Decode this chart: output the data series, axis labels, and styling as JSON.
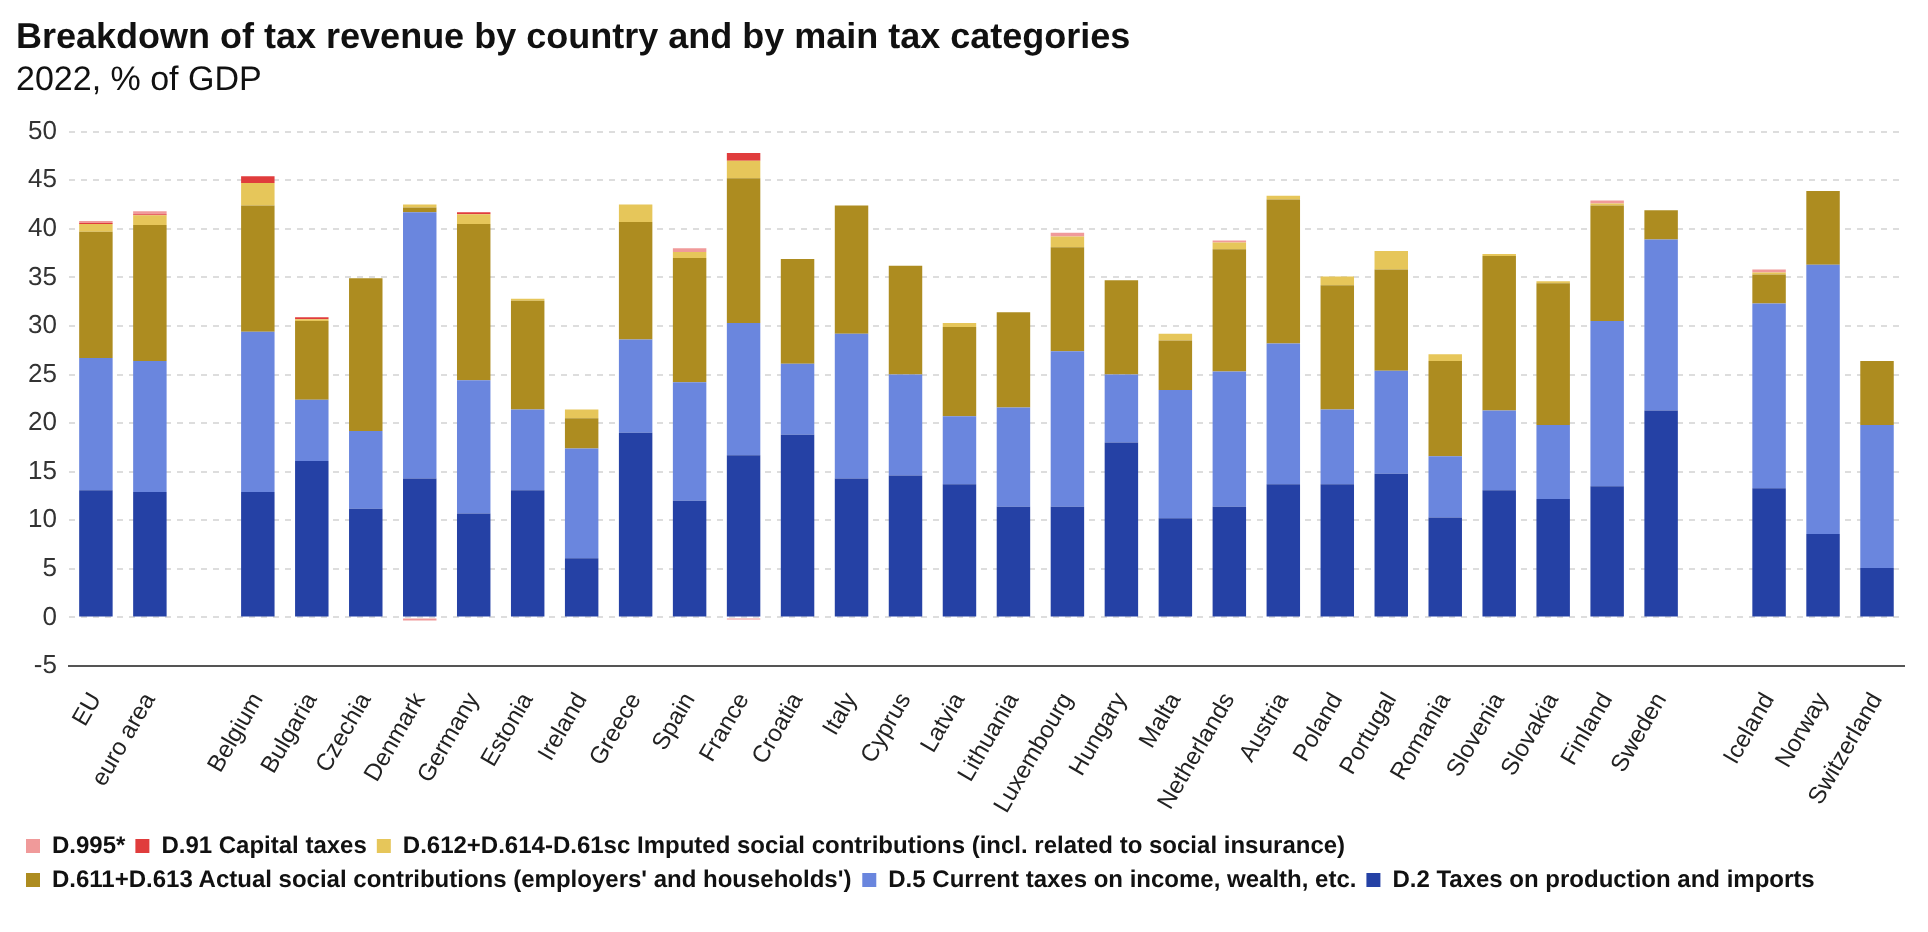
{
  "chart_data": {
    "type": "bar",
    "title": "Breakdown of tax revenue by country and by main tax categories",
    "subtitle": "2022, % of GDP",
    "categories": [
      "EU",
      "euro area",
      null,
      "Belgium",
      "Bulgaria",
      "Czechia",
      "Denmark",
      "Germany",
      "Estonia",
      "Ireland",
      "Greece",
      "Spain",
      "France",
      "Croatia",
      "Italy",
      "Cyprus",
      "Latvia",
      "Lithuania",
      "Luxembourg",
      "Hungary",
      "Malta",
      "Netherlands",
      "Austria",
      "Poland",
      "Portugal",
      "Romania",
      "Slovenia",
      "Slovakia",
      "Finland",
      "Sweden",
      null,
      "Iceland",
      "Norway",
      "Switzerland"
    ],
    "stacked": true,
    "series": [
      {
        "name": "D.2 Taxes on production and imports",
        "color": "#2541a5",
        "values": [
          13.1,
          12.9,
          null,
          12.9,
          16.1,
          11.2,
          14.3,
          10.7,
          13.1,
          6.1,
          19.0,
          12.0,
          16.7,
          18.8,
          14.3,
          14.6,
          13.7,
          11.4,
          11.4,
          18.0,
          10.2,
          11.4,
          13.7,
          13.7,
          14.8,
          10.3,
          13.1,
          12.2,
          13.5,
          21.3,
          null,
          13.3,
          8.6,
          5.1
        ]
      },
      {
        "name": "D.5 Current taxes on income, wealth, etc.",
        "color": "#6a86de",
        "values": [
          13.6,
          13.5,
          null,
          16.5,
          6.3,
          8.0,
          27.4,
          13.7,
          8.3,
          11.3,
          9.6,
          12.2,
          13.6,
          7.3,
          14.9,
          10.4,
          7.0,
          10.2,
          16.0,
          7.0,
          13.2,
          13.9,
          14.5,
          7.7,
          10.6,
          6.3,
          8.2,
          7.6,
          17.0,
          17.6,
          null,
          19.0,
          27.7,
          14.7
        ]
      },
      {
        "name": "D.611+D.613 Actual social contributions (employers' and households')",
        "color": "#ad8c20",
        "values": [
          13.0,
          14.0,
          null,
          13.0,
          8.1,
          15.7,
          0.5,
          16.1,
          11.2,
          3.1,
          12.1,
          12.8,
          14.9,
          10.8,
          13.2,
          11.2,
          9.2,
          9.8,
          10.7,
          9.7,
          5.1,
          12.6,
          14.8,
          12.8,
          10.4,
          9.8,
          15.9,
          14.6,
          11.9,
          3.0,
          null,
          3.0,
          7.6,
          6.6
        ]
      },
      {
        "name": "D.612+D.614-D.61sc Imputed social contributions (incl. related to social insurance)",
        "color": "#e6c65a",
        "values": [
          0.8,
          1.0,
          null,
          2.3,
          0.2,
          null,
          0.3,
          1.0,
          0.2,
          0.9,
          1.8,
          0.6,
          1.8,
          null,
          null,
          null,
          0.4,
          null,
          1.1,
          null,
          0.7,
          0.7,
          0.4,
          0.9,
          1.9,
          0.7,
          0.2,
          0.2,
          0.2,
          null,
          null,
          0.2,
          null,
          null
        ]
      },
      {
        "name": "D.91 Capital taxes",
        "color": "#e03c3c",
        "values": [
          0.1,
          0.1,
          null,
          0.7,
          0.2,
          null,
          null,
          0.2,
          null,
          null,
          null,
          null,
          0.8,
          null,
          null,
          null,
          null,
          null,
          null,
          null,
          null,
          null,
          null,
          null,
          null,
          null,
          null,
          null,
          null,
          null,
          null,
          null,
          null,
          null
        ]
      },
      {
        "name": "D.995*",
        "color": "#f09a9a",
        "values": [
          0.2,
          0.3,
          null,
          null,
          null,
          null,
          -0.3,
          null,
          null,
          null,
          null,
          0.4,
          -0.2,
          null,
          null,
          null,
          null,
          null,
          0.4,
          null,
          null,
          0.2,
          null,
          null,
          null,
          null,
          null,
          null,
          0.3,
          null,
          null,
          0.3,
          null,
          null
        ]
      }
    ],
    "ylim": [
      -5,
      50
    ],
    "yticks": [
      -5,
      0,
      5,
      10,
      15,
      20,
      25,
      30,
      35,
      40,
      45,
      50
    ],
    "grid": "y",
    "legend": "bottom"
  }
}
